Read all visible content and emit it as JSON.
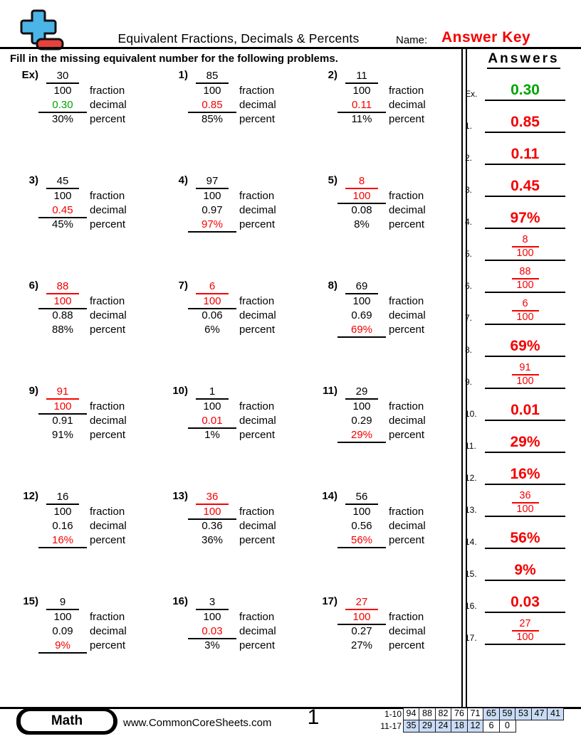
{
  "header": {
    "title": "Equivalent Fractions, Decimals & Percents",
    "name_label": "Name:",
    "answer_key_label": "Answer Key",
    "logo_icon": "plus-minus-logo"
  },
  "instruction": "Fill in the missing equivalent number for the following problems.",
  "row_labels": {
    "fraction": "fraction",
    "decimal": "decimal",
    "percent": "percent"
  },
  "problems": [
    {
      "label": "Ex)",
      "numerator": "30",
      "denominator": "100",
      "decimal": "0.30",
      "percent": "30%",
      "missing": "decimal",
      "highlight": "green"
    },
    {
      "label": "1)",
      "numerator": "85",
      "denominator": "100",
      "decimal": "0.85",
      "percent": "85%",
      "missing": "decimal",
      "highlight": "red"
    },
    {
      "label": "2)",
      "numerator": "11",
      "denominator": "100",
      "decimal": "0.11",
      "percent": "11%",
      "missing": "decimal",
      "highlight": "red"
    },
    {
      "label": "3)",
      "numerator": "45",
      "denominator": "100",
      "decimal": "0.45",
      "percent": "45%",
      "missing": "decimal",
      "highlight": "red"
    },
    {
      "label": "4)",
      "numerator": "97",
      "denominator": "100",
      "decimal": "0.97",
      "percent": "97%",
      "missing": "percent",
      "highlight": "red"
    },
    {
      "label": "5)",
      "numerator": "8",
      "denominator": "100",
      "decimal": "0.08",
      "percent": "8%",
      "missing": "fraction",
      "highlight": "red"
    },
    {
      "label": "6)",
      "numerator": "88",
      "denominator": "100",
      "decimal": "0.88",
      "percent": "88%",
      "missing": "fraction",
      "highlight": "red"
    },
    {
      "label": "7)",
      "numerator": "6",
      "denominator": "100",
      "decimal": "0.06",
      "percent": "6%",
      "missing": "fraction",
      "highlight": "red"
    },
    {
      "label": "8)",
      "numerator": "69",
      "denominator": "100",
      "decimal": "0.69",
      "percent": "69%",
      "missing": "percent",
      "highlight": "red"
    },
    {
      "label": "9)",
      "numerator": "91",
      "denominator": "100",
      "decimal": "0.91",
      "percent": "91%",
      "missing": "fraction",
      "highlight": "red"
    },
    {
      "label": "10)",
      "numerator": "1",
      "denominator": "100",
      "decimal": "0.01",
      "percent": "1%",
      "missing": "decimal",
      "highlight": "red"
    },
    {
      "label": "11)",
      "numerator": "29",
      "denominator": "100",
      "decimal": "0.29",
      "percent": "29%",
      "missing": "percent",
      "highlight": "red"
    },
    {
      "label": "12)",
      "numerator": "16",
      "denominator": "100",
      "decimal": "0.16",
      "percent": "16%",
      "missing": "percent",
      "highlight": "red"
    },
    {
      "label": "13)",
      "numerator": "36",
      "denominator": "100",
      "decimal": "0.36",
      "percent": "36%",
      "missing": "fraction",
      "highlight": "red"
    },
    {
      "label": "14)",
      "numerator": "56",
      "denominator": "100",
      "decimal": "0.56",
      "percent": "56%",
      "missing": "percent",
      "highlight": "red"
    },
    {
      "label": "15)",
      "numerator": "9",
      "denominator": "100",
      "decimal": "0.09",
      "percent": "9%",
      "missing": "percent",
      "highlight": "red"
    },
    {
      "label": "16)",
      "numerator": "3",
      "denominator": "100",
      "decimal": "0.03",
      "percent": "3%",
      "missing": "decimal",
      "highlight": "red"
    },
    {
      "label": "17)",
      "numerator": "27",
      "denominator": "100",
      "decimal": "0.27",
      "percent": "27%",
      "missing": "fraction",
      "highlight": "red"
    }
  ],
  "answers_panel": {
    "title": "Answers",
    "items": [
      {
        "label": "Ex.",
        "kind": "text",
        "value": "0.30",
        "color": "green"
      },
      {
        "label": "1.",
        "kind": "text",
        "value": "0.85",
        "color": "red"
      },
      {
        "label": "2.",
        "kind": "text",
        "value": "0.11",
        "color": "red"
      },
      {
        "label": "3.",
        "kind": "text",
        "value": "0.45",
        "color": "red"
      },
      {
        "label": "4.",
        "kind": "text",
        "value": "97%",
        "color": "red"
      },
      {
        "label": "5.",
        "kind": "fraction",
        "numerator": "8",
        "denominator": "100",
        "color": "red"
      },
      {
        "label": "6.",
        "kind": "fraction",
        "numerator": "88",
        "denominator": "100",
        "color": "red"
      },
      {
        "label": "7.",
        "kind": "fraction",
        "numerator": "6",
        "denominator": "100",
        "color": "red"
      },
      {
        "label": "8.",
        "kind": "text",
        "value": "69%",
        "color": "red"
      },
      {
        "label": "9.",
        "kind": "fraction",
        "numerator": "91",
        "denominator": "100",
        "color": "red"
      },
      {
        "label": "10.",
        "kind": "text",
        "value": "0.01",
        "color": "red"
      },
      {
        "label": "11.",
        "kind": "text",
        "value": "29%",
        "color": "red"
      },
      {
        "label": "12.",
        "kind": "text",
        "value": "16%",
        "color": "red"
      },
      {
        "label": "13.",
        "kind": "fraction",
        "numerator": "36",
        "denominator": "100",
        "color": "red"
      },
      {
        "label": "14.",
        "kind": "text",
        "value": "56%",
        "color": "red"
      },
      {
        "label": "15.",
        "kind": "text",
        "value": "9%",
        "color": "red"
      },
      {
        "label": "16.",
        "kind": "text",
        "value": "0.03",
        "color": "red"
      },
      {
        "label": "17.",
        "kind": "fraction",
        "numerator": "27",
        "denominator": "100",
        "color": "red"
      }
    ]
  },
  "footer": {
    "subject_badge": "Math",
    "website": "www.CommonCoreSheets.com",
    "page_number": "1",
    "score_table": {
      "rows": [
        {
          "label": "1-10",
          "cells": [
            {
              "value": "94",
              "shaded": false
            },
            {
              "value": "88",
              "shaded": false
            },
            {
              "value": "82",
              "shaded": false
            },
            {
              "value": "76",
              "shaded": false
            },
            {
              "value": "71",
              "shaded": false
            },
            {
              "value": "65",
              "shaded": true
            },
            {
              "value": "59",
              "shaded": true
            },
            {
              "value": "53",
              "shaded": true
            },
            {
              "value": "47",
              "shaded": true
            },
            {
              "value": "41",
              "shaded": true
            }
          ]
        },
        {
          "label": "11-17",
          "cells": [
            {
              "value": "35",
              "shaded": true
            },
            {
              "value": "29",
              "shaded": true
            },
            {
              "value": "24",
              "shaded": true
            },
            {
              "value": "18",
              "shaded": true
            },
            {
              "value": "12",
              "shaded": true
            },
            {
              "value": "6",
              "shaded": false
            },
            {
              "value": "0",
              "shaded": false
            }
          ]
        }
      ]
    }
  },
  "colors": {
    "answer_red": "#f50000",
    "answer_green": "#00a300",
    "cell_blue": "#c9dcf3",
    "logo_blue": "#4ab5e6",
    "logo_red": "#e8413c"
  }
}
